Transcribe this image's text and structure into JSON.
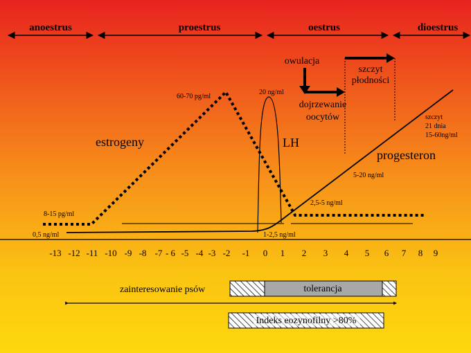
{
  "phases": [
    "anoestrus",
    "proestrus",
    "oestrus",
    "dioestrus"
  ],
  "labels": {
    "owulacja": "owulacja",
    "szczyt_line1": "szczyt",
    "szczyt_line2": "płodności",
    "dojrz_line1": "dojrzewanie",
    "dojrz_line2": "oocytów",
    "estrogeny": "estrogeny",
    "lh": "LH",
    "progesteron": "progesteron",
    "szczyt_p1": "szczyt",
    "szczyt_p2": "21 dnia",
    "szczyt_p3": "15-60ng/ml"
  },
  "values": {
    "est_peak": "60-70 pg/ml",
    "lh_peak": "20 ng/ml",
    "est_base": "8-15 pg/ml",
    "prog_base": "0,5 ng/ml",
    "prog_mid": "5-20 ng/ml",
    "prog_low": "2,5-5 ng/ml",
    "prog_ov": "1-2,5 ng/ml"
  },
  "axis_ticks": [
    "-13",
    "-12",
    "-11",
    "-10",
    "-9",
    "-8",
    "-7",
    "- 6",
    "-5",
    "-4",
    "-3",
    "-2",
    "-1",
    "0",
    "1",
    "2",
    "3",
    "4",
    "5",
    "6",
    "7",
    "8",
    "9"
  ],
  "bottom": {
    "interest": "zainteresowanie psów",
    "tolerance": "tolerancja",
    "index": "Indeks eozynofilny >80%"
  },
  "colors": {
    "tolerance_fill": "#a8a8a8",
    "line": "#000000"
  }
}
